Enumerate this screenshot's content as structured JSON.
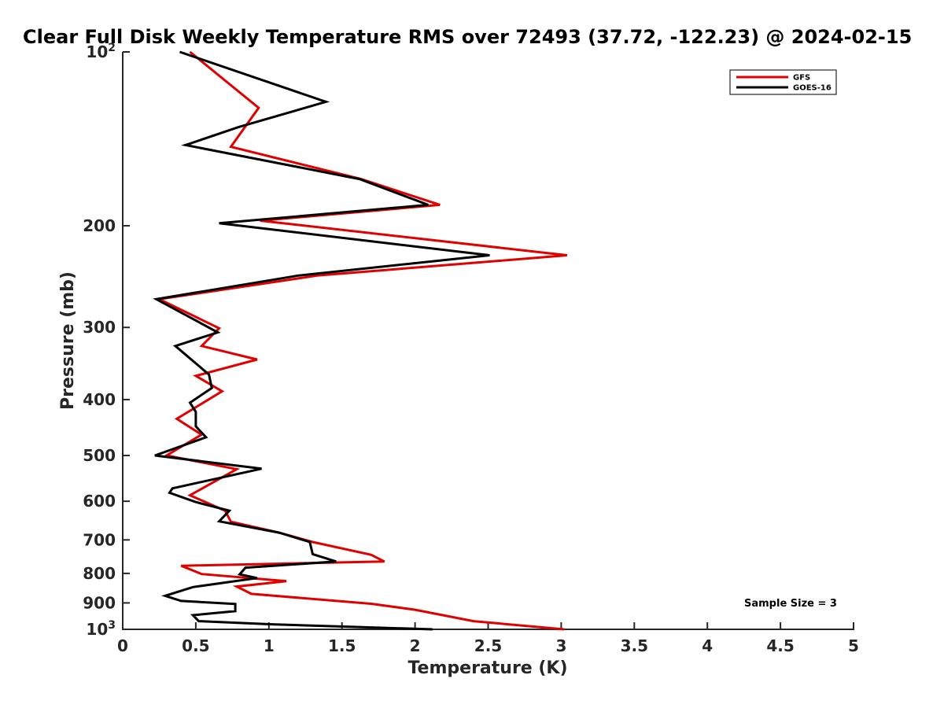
{
  "chart_data": {
    "type": "line",
    "title": "Clear Full Disk Weekly Temperature RMS over 72493 (37.72, -122.23) @ 2024-02-15",
    "xlabel": "Temperature (K)",
    "ylabel": "Pressure (mb)",
    "xlim": [
      0,
      5
    ],
    "ylim": [
      100,
      1000
    ],
    "y_scale": "log",
    "y_reversed": true,
    "grid": false,
    "legend_position": "top-right",
    "x_ticks": [
      "0",
      "0.5",
      "1",
      "1.5",
      "2",
      "2.5",
      "3",
      "3.5",
      "4",
      "4.5",
      "5"
    ],
    "y_ticks": [
      {
        "value": 100,
        "base": "10",
        "exp": "2",
        "label": ""
      },
      {
        "value": 200,
        "base": "",
        "exp": "",
        "label": "200"
      },
      {
        "value": 300,
        "base": "",
        "exp": "",
        "label": "300"
      },
      {
        "value": 400,
        "base": "",
        "exp": "",
        "label": "400"
      },
      {
        "value": 500,
        "base": "",
        "exp": "",
        "label": "500"
      },
      {
        "value": 600,
        "base": "",
        "exp": "",
        "label": "600"
      },
      {
        "value": 700,
        "base": "",
        "exp": "",
        "label": "700"
      },
      {
        "value": 800,
        "base": "",
        "exp": "",
        "label": "800"
      },
      {
        "value": 900,
        "base": "",
        "exp": "",
        "label": "900"
      },
      {
        "value": 1000,
        "base": "10",
        "exp": "3",
        "label": ""
      }
    ],
    "series": [
      {
        "name": "GFS",
        "color": "#e00000",
        "points": [
          [
            0.46,
            100
          ],
          [
            0.93,
            125
          ],
          [
            0.8,
            139
          ],
          [
            0.74,
            146
          ],
          [
            1.63,
            166
          ],
          [
            2.17,
            184
          ],
          [
            0.94,
            196
          ],
          [
            3.04,
            225
          ],
          [
            1.33,
            244
          ],
          [
            0.25,
            268
          ],
          [
            0.66,
            301
          ],
          [
            0.54,
            323
          ],
          [
            0.92,
            341
          ],
          [
            0.5,
            364
          ],
          [
            0.68,
            387
          ],
          [
            0.37,
            432
          ],
          [
            0.54,
            460
          ],
          [
            0.3,
            500
          ],
          [
            0.78,
            528
          ],
          [
            0.46,
            586
          ],
          [
            0.7,
            623
          ],
          [
            0.74,
            651
          ],
          [
            1.07,
            680
          ],
          [
            1.3,
            706
          ],
          [
            1.7,
            743
          ],
          [
            1.79,
            763
          ],
          [
            0.4,
            776
          ],
          [
            0.54,
            802
          ],
          [
            1.12,
            825
          ],
          [
            0.78,
            843
          ],
          [
            0.88,
            868
          ],
          [
            1.7,
            903
          ],
          [
            2.0,
            925
          ],
          [
            2.4,
            968
          ],
          [
            3.02,
            1000
          ]
        ]
      },
      {
        "name": "GOES-16",
        "color": "#000000",
        "points": [
          [
            0.39,
            100
          ],
          [
            1.39,
            122
          ],
          [
            0.79,
            135
          ],
          [
            0.43,
            145
          ],
          [
            1.62,
            166
          ],
          [
            2.09,
            184
          ],
          [
            0.66,
            198
          ],
          [
            2.51,
            225
          ],
          [
            1.2,
            244
          ],
          [
            0.23,
            268
          ],
          [
            0.65,
            306
          ],
          [
            0.36,
            323
          ],
          [
            0.59,
            362
          ],
          [
            0.61,
            382
          ],
          [
            0.46,
            405
          ],
          [
            0.5,
            420
          ],
          [
            0.5,
            445
          ],
          [
            0.57,
            465
          ],
          [
            0.22,
            500
          ],
          [
            0.95,
            527
          ],
          [
            0.34,
            570
          ],
          [
            0.32,
            580
          ],
          [
            0.5,
            602
          ],
          [
            0.73,
            623
          ],
          [
            0.66,
            650
          ],
          [
            1.07,
            680
          ],
          [
            1.28,
            706
          ],
          [
            1.3,
            741
          ],
          [
            1.46,
            763
          ],
          [
            0.84,
            782
          ],
          [
            0.8,
            803
          ],
          [
            0.92,
            815
          ],
          [
            0.48,
            845
          ],
          [
            0.29,
            875
          ],
          [
            0.4,
            893
          ],
          [
            0.77,
            904
          ],
          [
            0.77,
            930
          ],
          [
            0.48,
            945
          ],
          [
            0.52,
            968
          ],
          [
            1.02,
            980
          ],
          [
            2.12,
            1000
          ]
        ]
      }
    ],
    "annotation": "Sample Size = 3"
  }
}
